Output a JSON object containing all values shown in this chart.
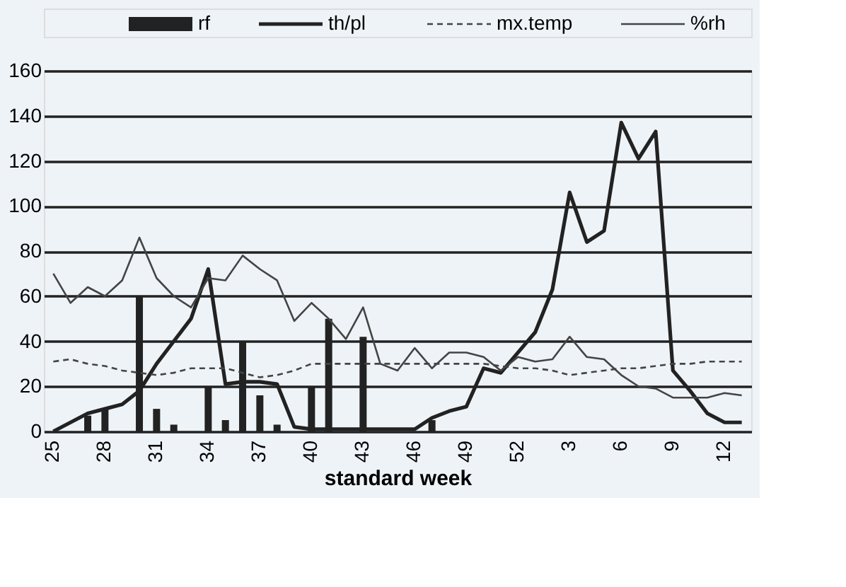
{
  "chart_data": {
    "type": "bar",
    "xlabel": "standard week",
    "categories": [
      "25",
      null,
      null,
      "28",
      null,
      null,
      "31",
      null,
      null,
      "34",
      null,
      null,
      "37",
      null,
      null,
      "40",
      null,
      null,
      "43",
      null,
      null,
      "46",
      null,
      null,
      "49",
      null,
      null,
      "52",
      null,
      null,
      "3",
      null,
      null,
      "6",
      null,
      null,
      "9",
      null,
      null,
      "12",
      null
    ],
    "series": [
      {
        "name": "rf",
        "color": "#222222",
        "values": [
          0,
          0,
          7,
          10,
          0,
          60,
          10,
          3,
          0,
          20,
          5,
          40,
          16,
          3,
          0,
          20,
          50,
          0,
          42,
          0,
          0,
          0,
          5,
          0,
          0,
          0,
          0,
          0,
          0,
          0,
          0,
          0,
          0,
          0,
          0,
          0,
          0,
          0,
          0,
          0,
          0
        ]
      },
      {
        "name": "th/pl",
        "type": "line",
        "line_style": "solid",
        "color": "#222222",
        "values": [
          0,
          4,
          8,
          10,
          12,
          18,
          30,
          40,
          50,
          72,
          21,
          22,
          22,
          21,
          2,
          1,
          1,
          1,
          1,
          1,
          1,
          1,
          6,
          9,
          11,
          28,
          26,
          35,
          44,
          63,
          106,
          84,
          89,
          137,
          121,
          133,
          27,
          18,
          8,
          4,
          4
        ]
      },
      {
        "name": "mx.temp",
        "type": "line",
        "line_style": "dashed",
        "color": "#444444",
        "values": [
          31,
          32,
          30,
          29,
          27,
          26,
          25,
          26,
          28,
          28,
          28,
          26,
          24,
          25,
          27,
          30,
          30,
          30,
          30,
          30,
          30,
          30,
          30,
          30,
          30,
          30,
          29,
          28,
          28,
          27,
          25,
          26,
          27,
          28,
          28,
          29,
          30,
          30,
          31,
          31,
          31
        ]
      },
      {
        "name": "%rh",
        "type": "line",
        "line_style": "solid",
        "color": "#444444",
        "values": [
          70,
          57,
          64,
          60,
          67,
          86,
          68,
          60,
          55,
          68,
          67,
          78,
          72,
          67,
          49,
          57,
          50,
          41,
          55,
          30,
          27,
          37,
          28,
          35,
          35,
          33,
          27,
          33,
          31,
          32,
          42,
          33,
          32,
          25,
          20,
          19,
          15,
          15,
          15,
          17,
          16
        ]
      }
    ],
    "ylim": [
      0,
      160
    ],
    "yticks": [
      0,
      20,
      40,
      60,
      80,
      100,
      120,
      140,
      160
    ],
    "grid": "y",
    "legend": "top"
  }
}
